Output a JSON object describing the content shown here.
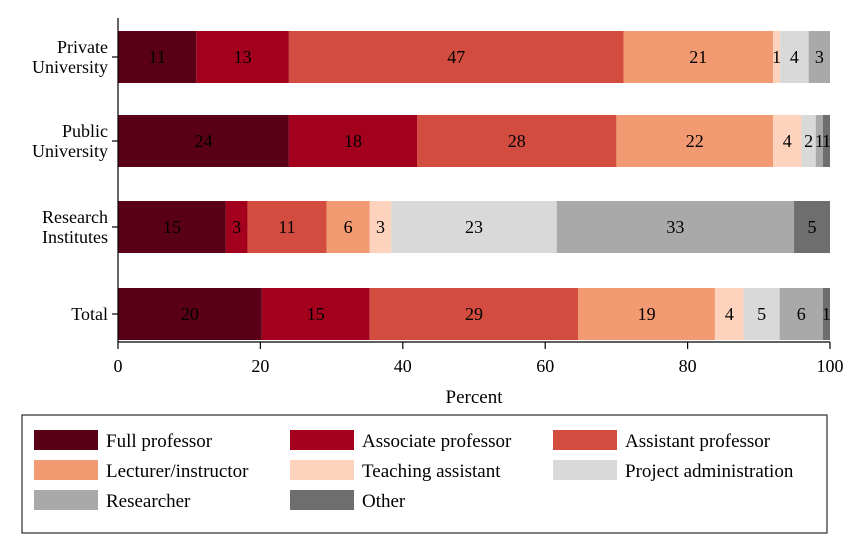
{
  "chart_data": {
    "type": "bar",
    "orientation": "horizontal",
    "stacked": true,
    "categories": [
      "Private\nUniversity",
      "Public\nUniversity",
      "Research\nInstitutes",
      "Total"
    ],
    "series": [
      {
        "name": "Full professor",
        "color": "#5a0016",
        "values": [
          11,
          24,
          15,
          20
        ]
      },
      {
        "name": "Associate professor",
        "color": "#a3001d",
        "values": [
          13,
          18,
          3,
          15
        ]
      },
      {
        "name": "Assistant professor",
        "color": "#d24c40",
        "values": [
          47,
          28,
          11,
          29
        ]
      },
      {
        "name": "Lecturer/instructor",
        "color": "#f29a72",
        "values": [
          21,
          22,
          6,
          19
        ]
      },
      {
        "name": "Teaching assistant",
        "color": "#fdd3bd",
        "values": [
          1,
          4,
          3,
          4
        ]
      },
      {
        "name": "Project administration",
        "color": "#d9d9d9",
        "values": [
          4,
          2,
          23,
          5
        ]
      },
      {
        "name": "Researcher",
        "color": "#a9a9a9",
        "values": [
          3,
          1,
          33,
          6
        ]
      },
      {
        "name": "Other",
        "color": "#6e6e6e",
        "values": [
          0,
          1,
          5,
          1
        ]
      }
    ],
    "xlabel": "Percent",
    "xlim": [
      0,
      100
    ],
    "xticks": [
      0,
      20,
      40,
      60,
      80,
      100
    ],
    "grid": false,
    "legend_position": "bottom"
  }
}
